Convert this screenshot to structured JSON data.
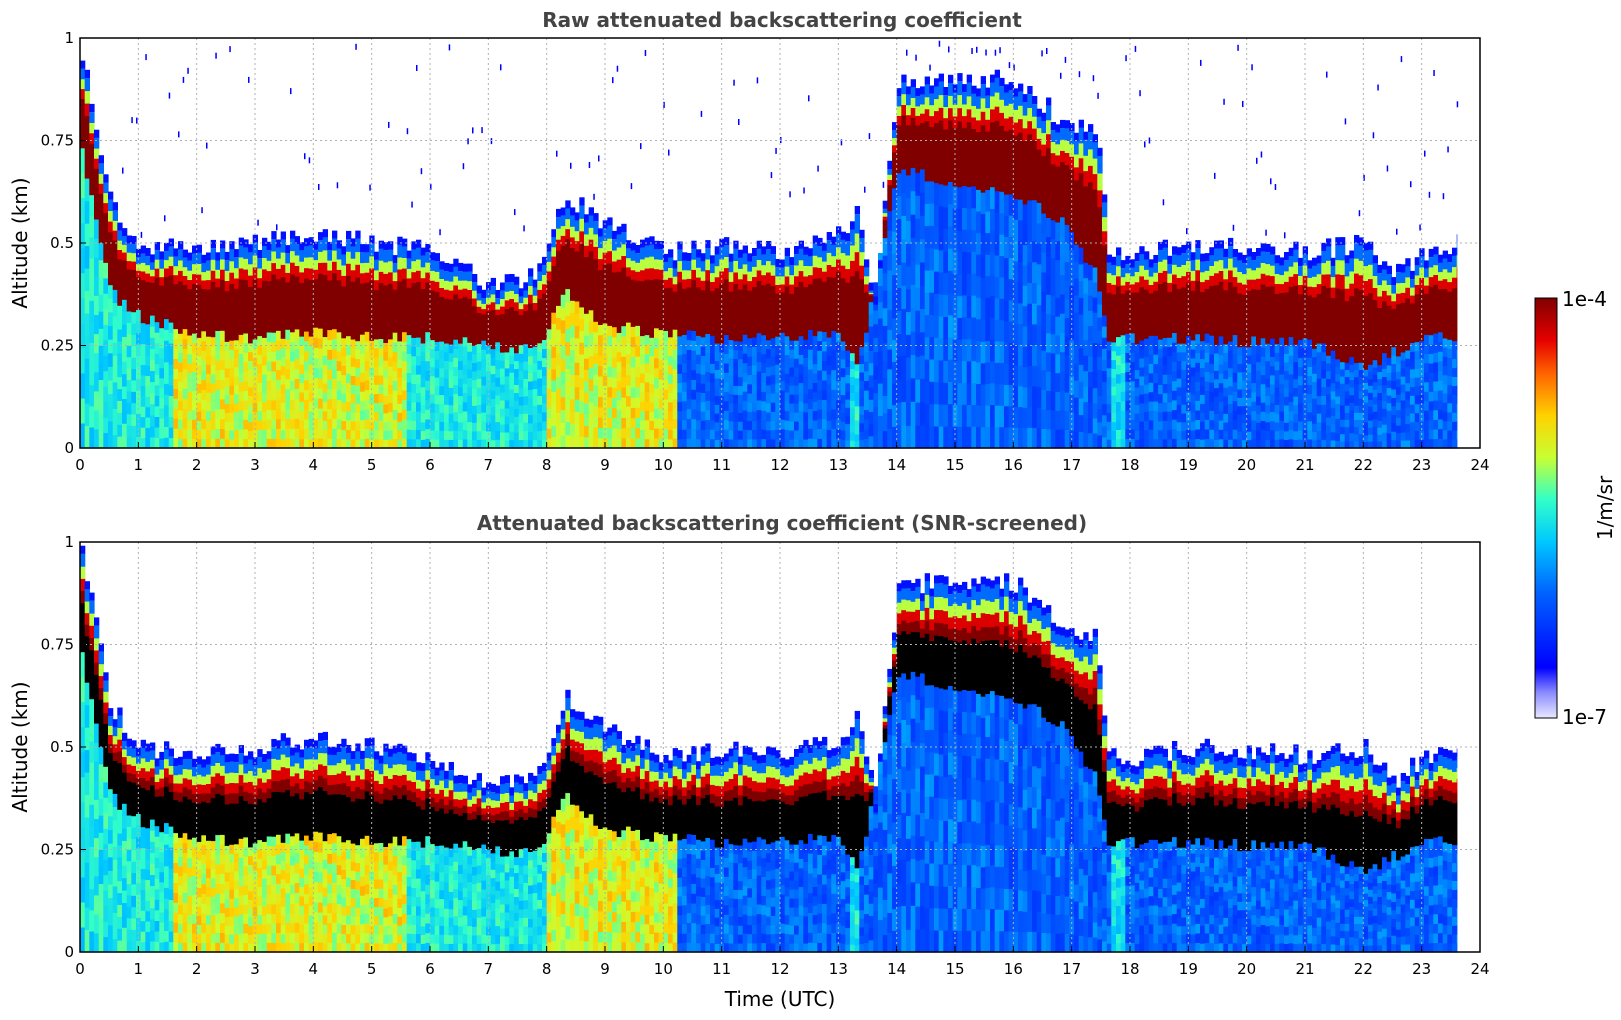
{
  "chart_data": [
    {
      "type": "heatmap",
      "title": "Raw attenuated backscattering coefficient",
      "xlabel": "",
      "ylabel": "Altitude (km)",
      "xlim": [
        0,
        24
      ],
      "ylim": [
        0,
        1
      ],
      "x_ticks": [
        "0",
        "1",
        "2",
        "3",
        "4",
        "5",
        "6",
        "7",
        "8",
        "9",
        "10",
        "11",
        "12",
        "13",
        "14",
        "15",
        "16",
        "17",
        "18",
        "19",
        "20",
        "21",
        "22",
        "23",
        "24"
      ],
      "y_ticks": [
        "0",
        "0.25",
        "0.5",
        "0.75",
        "1"
      ],
      "grid": true,
      "data_end_time": 23.6,
      "layer_top_km": [
        [
          0,
          0.95
        ],
        [
          0.5,
          0.58
        ],
        [
          1,
          0.48
        ],
        [
          2,
          0.46
        ],
        [
          3,
          0.48
        ],
        [
          4,
          0.5
        ],
        [
          5,
          0.48
        ],
        [
          6,
          0.46
        ],
        [
          7,
          0.38
        ],
        [
          7.8,
          0.4
        ],
        [
          8.3,
          0.6
        ],
        [
          9,
          0.52
        ],
        [
          10,
          0.46
        ],
        [
          11,
          0.47
        ],
        [
          12,
          0.46
        ],
        [
          13,
          0.5
        ],
        [
          13.3,
          0.55
        ],
        [
          13.6,
          0.35
        ],
        [
          14,
          0.88
        ],
        [
          15,
          0.88
        ],
        [
          16,
          0.88
        ],
        [
          16.8,
          0.78
        ],
        [
          17.4,
          0.75
        ],
        [
          17.6,
          0.46
        ],
        [
          18,
          0.45
        ],
        [
          19,
          0.48
        ],
        [
          20,
          0.47
        ],
        [
          21,
          0.46
        ],
        [
          22,
          0.48
        ],
        [
          22.5,
          0.4
        ],
        [
          23,
          0.45
        ],
        [
          23.6,
          0.48
        ]
      ],
      "layer_base_km": [
        [
          0,
          0.72
        ],
        [
          0.5,
          0.38
        ],
        [
          1,
          0.32
        ],
        [
          2,
          0.28
        ],
        [
          3,
          0.27
        ],
        [
          4,
          0.28
        ],
        [
          5,
          0.27
        ],
        [
          6,
          0.27
        ],
        [
          7,
          0.25
        ],
        [
          7.8,
          0.24
        ],
        [
          8.3,
          0.38
        ],
        [
          9,
          0.3
        ],
        [
          10,
          0.28
        ],
        [
          11,
          0.27
        ],
        [
          12,
          0.27
        ],
        [
          13,
          0.28
        ],
        [
          13.3,
          0.2
        ],
        [
          14,
          0.68
        ],
        [
          15,
          0.65
        ],
        [
          16,
          0.62
        ],
        [
          16.8,
          0.55
        ],
        [
          17.4,
          0.42
        ],
        [
          17.6,
          0.26
        ],
        [
          18,
          0.27
        ],
        [
          19,
          0.27
        ],
        [
          20,
          0.26
        ],
        [
          21,
          0.26
        ],
        [
          22,
          0.2
        ],
        [
          23,
          0.27
        ],
        [
          23.6,
          0.27
        ]
      ]
    },
    {
      "type": "heatmap",
      "title": "Attenuated backscattering coefficient (SNR-screened)",
      "xlabel": "Time (UTC)",
      "ylabel": "Altitude (km)",
      "xlim": [
        0,
        24
      ],
      "ylim": [
        0,
        1
      ],
      "x_ticks": [
        "0",
        "1",
        "2",
        "3",
        "4",
        "5",
        "6",
        "7",
        "8",
        "9",
        "10",
        "11",
        "12",
        "13",
        "14",
        "15",
        "16",
        "17",
        "18",
        "19",
        "20",
        "21",
        "22",
        "23",
        "24"
      ],
      "y_ticks": [
        "0",
        "0.25",
        "0.5",
        "0.75",
        "1"
      ],
      "grid": true,
      "data_end_time": 23.6
    }
  ],
  "colorbar": {
    "label": "1/m/sr",
    "max_label": "1e-4",
    "min_label": "1e-7",
    "colormap": "jet",
    "scale": "log"
  }
}
